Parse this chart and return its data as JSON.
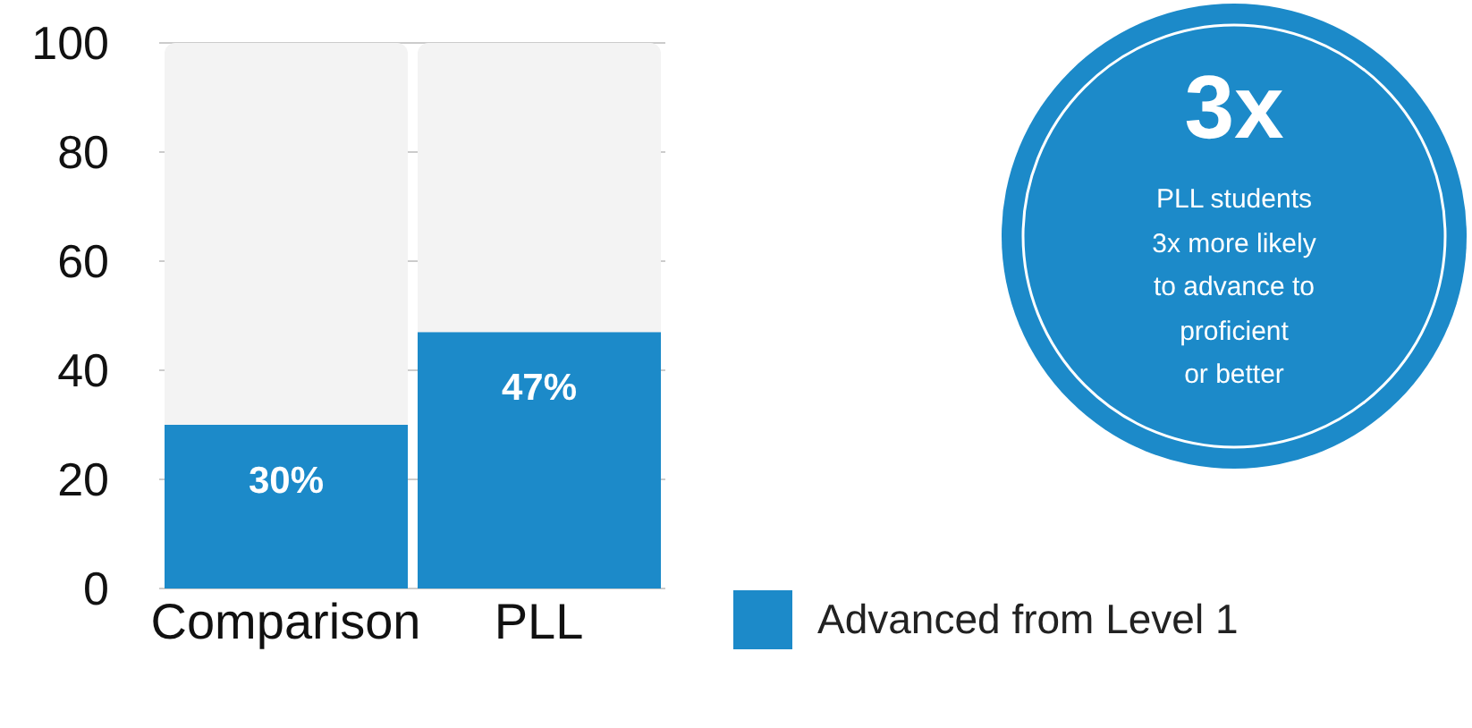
{
  "chart_data": {
    "type": "bar",
    "stacked": true,
    "categories": [
      "Comparison",
      "PLL"
    ],
    "series": [
      {
        "name": "Advanced from Level 1",
        "color": "#1c8ac9",
        "values": [
          30,
          47
        ],
        "value_labels": [
          "30%",
          "47%"
        ]
      },
      {
        "color": "#f3f3f3",
        "values": [
          70,
          53
        ]
      }
    ],
    "ylim": [
      0,
      100
    ],
    "yticks": [
      0,
      20,
      40,
      60,
      80,
      100
    ],
    "grid": "y",
    "legend": "right",
    "annotations": [
      "3x",
      "PLL students\n3x more likely\nto advance to\nproficient\nor better"
    ]
  }
}
